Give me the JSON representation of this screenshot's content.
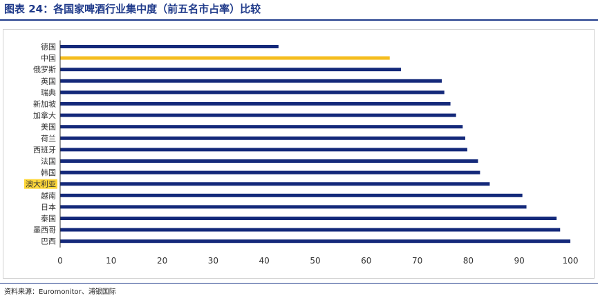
{
  "title": "图表 24：各国家啤酒行业集中度（前五名市占率）比较",
  "source": "资料来源：Euromonitor、浦银国际",
  "colors": {
    "bar": "#14297a",
    "highlight": "#f5bd1f",
    "label_highlight_bg": "#ffd83a",
    "title": "#1f3a8a"
  },
  "chart_data": {
    "type": "bar",
    "orientation": "horizontal",
    "title": "各国家啤酒行业集中度（前五名市占率）比较",
    "categories": [
      "德国",
      "中国",
      "俄罗斯",
      "英国",
      "瑞典",
      "新加坡",
      "加拿大",
      "美国",
      "荷兰",
      "西班牙",
      "法国",
      "韩国",
      "澳大利亚",
      "越南",
      "日本",
      "泰国",
      "墨西哥",
      "巴西"
    ],
    "values": [
      42.8,
      64.6,
      66.8,
      74.8,
      75.3,
      76.5,
      77.6,
      78.9,
      79.4,
      79.8,
      81.9,
      82.3,
      84.2,
      90.6,
      91.4,
      97.3,
      98.0,
      100.0
    ],
    "highlight_bar": "中国",
    "highlight_label": "澳大利亚",
    "xlim": [
      0,
      100
    ],
    "xticks": [
      0,
      10,
      20,
      30,
      40,
      50,
      60,
      70,
      80,
      90,
      100
    ],
    "xlabel": "",
    "ylabel": "",
    "grid": false,
    "legend": "none"
  }
}
